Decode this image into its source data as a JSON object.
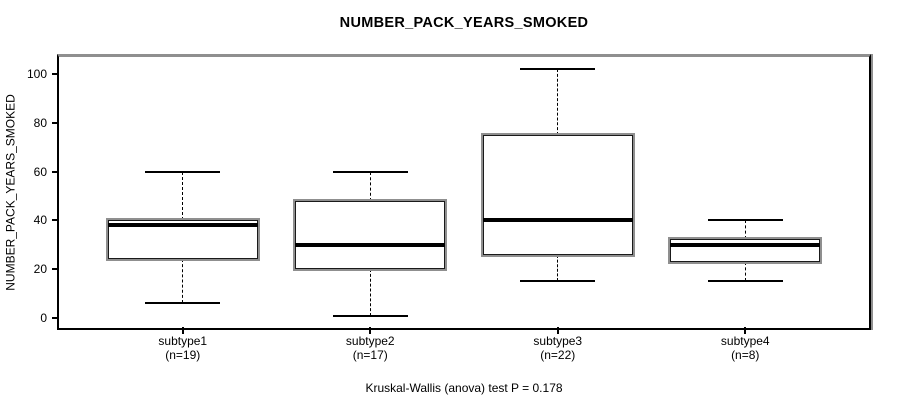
{
  "chart_data": {
    "type": "boxplot",
    "title": "NUMBER_PACK_YEARS_SMOKED",
    "ylabel": "NUMBER_PACK_YEARS_SMOKED",
    "xlabel": "",
    "annotation": "Kruskal-Wallis (anova) test P = 0.178",
    "yticks": [
      0,
      20,
      40,
      60,
      80,
      100
    ],
    "ylim": [
      -3.7,
      107
    ],
    "xlim": [
      0.34,
      4.66
    ],
    "box_width": 0.8,
    "cap_width": 0.4,
    "grid": false,
    "legend": "none",
    "categories": [
      {
        "label": "subtype1",
        "count_label": "(n=19)",
        "x": 1
      },
      {
        "label": "subtype2",
        "count_label": "(n=17)",
        "x": 2
      },
      {
        "label": "subtype3",
        "count_label": "(n=22)",
        "x": 3
      },
      {
        "label": "subtype4",
        "count_label": "(n=8)",
        "x": 4
      }
    ],
    "series": [
      {
        "name": "subtype1",
        "n": 19,
        "min": 6,
        "q1": 24,
        "median": 38,
        "q3": 40,
        "max": 60,
        "outliers": []
      },
      {
        "name": "subtype2",
        "n": 17,
        "min": 1,
        "q1": 20,
        "median": 30,
        "q3": 48,
        "max": 60,
        "outliers": []
      },
      {
        "name": "subtype3",
        "n": 22,
        "min": 15,
        "q1": 26,
        "median": 40,
        "q3": 75,
        "max": 102,
        "outliers": []
      },
      {
        "name": "subtype4",
        "n": 8,
        "min": 15,
        "q1": 23,
        "median": 30,
        "q3": 32.5,
        "max": 40,
        "outliers": []
      }
    ],
    "colors": {
      "box_fill": "#ffffff",
      "box_border": "#000000",
      "shadow_gray": "#8f8f8f",
      "text": "#000000",
      "background": "#ffffff"
    }
  }
}
